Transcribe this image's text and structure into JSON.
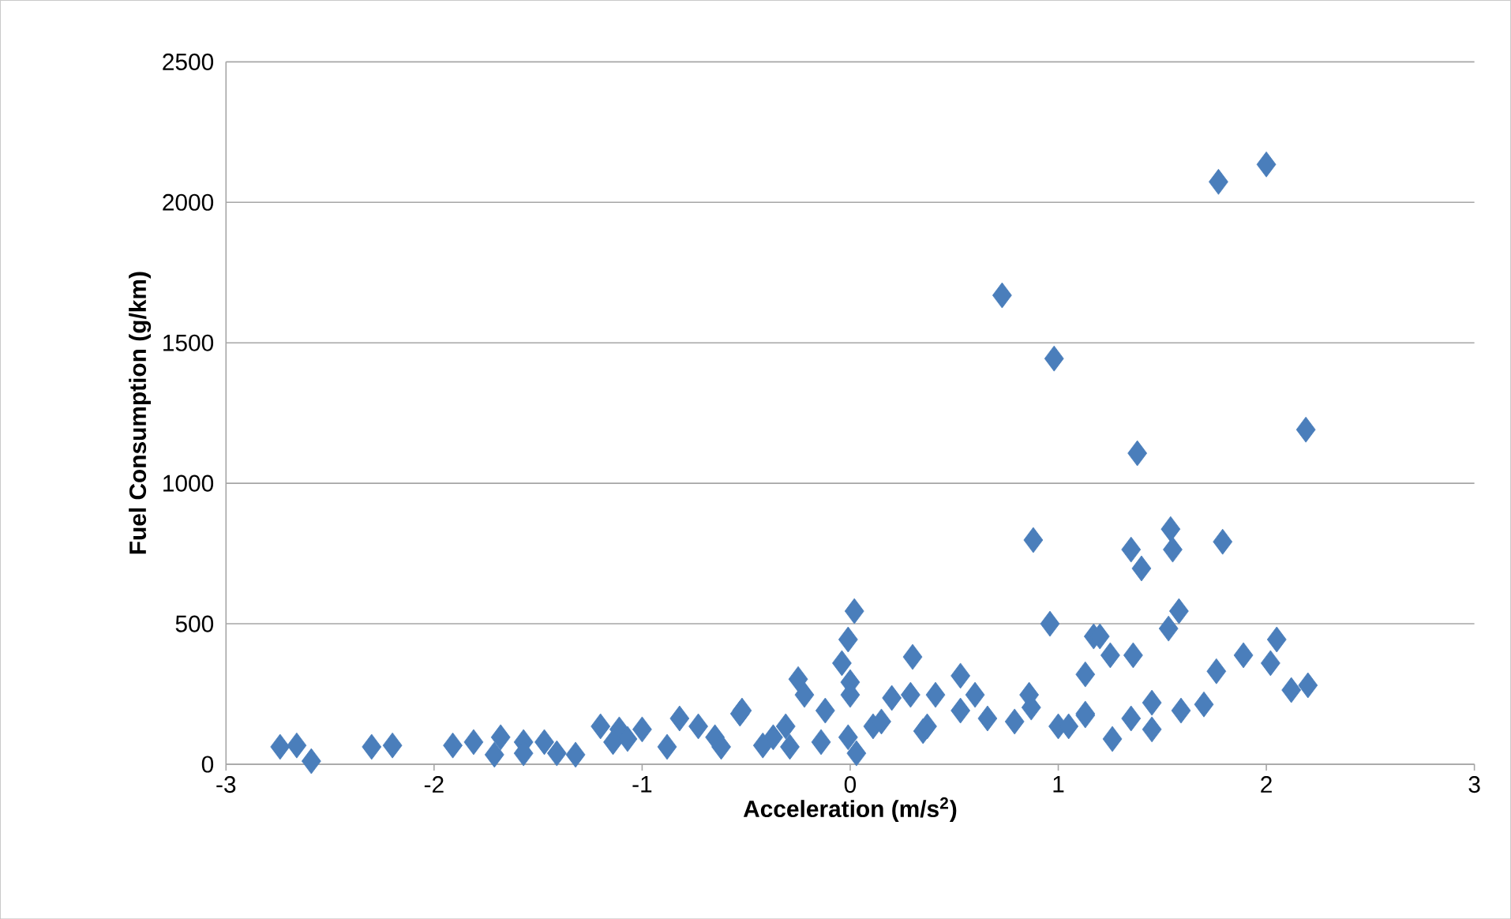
{
  "chart_data": {
    "type": "scatter",
    "xlabel": "Acceleration (m/s$^{2}$)",
    "ylabel": "Fuel Consumption (g/km)",
    "marker": "diamond",
    "grid": "y",
    "xlim": [
      -3,
      3
    ],
    "ylim": [
      0,
      2500
    ],
    "xticks": [
      -3,
      -2,
      -1,
      0,
      1,
      2,
      3
    ],
    "yticks": [
      0,
      500,
      1000,
      1500,
      2000,
      2500
    ],
    "series": [
      {
        "color": "#4a7ebb",
        "x": [
          -2.74,
          -2.66,
          -2.59,
          -2.3,
          -2.2,
          -1.91,
          -1.81,
          -1.68,
          -1.71,
          -1.57,
          -1.57,
          -1.47,
          -1.41,
          -1.32,
          -1.2,
          -1.11,
          -1.0,
          -1.07,
          -1.14,
          -0.88,
          -0.82,
          -0.73,
          -0.65,
          -0.53,
          -0.52,
          -0.37,
          -0.31,
          -0.62,
          -0.42,
          -0.29,
          -0.14,
          0.03,
          -0.01,
          0.11,
          0.35,
          0.02,
          0.96,
          -0.01,
          -0.04,
          -0.25,
          0.3,
          -0.22,
          0.0,
          0.0,
          0.53,
          0.6,
          0.2,
          0.29,
          0.41,
          0.86,
          1.17,
          -0.12,
          0.15,
          0.37,
          0.53,
          0.66,
          0.79,
          0.87,
          1.0,
          1.05,
          1.13,
          1.38,
          2.19,
          1.35,
          1.54,
          1.55,
          1.4,
          1.79,
          1.58,
          1.53,
          1.2,
          1.25,
          1.36,
          1.13,
          2.05,
          1.89,
          2.02,
          1.76,
          2.12,
          2.2,
          1.13,
          1.35,
          1.45,
          1.45,
          1.59,
          1.7,
          1.26,
          0.73,
          0.98,
          0.88,
          1.77,
          2.0
        ],
        "values": [
          62,
          67,
          11,
          62,
          67,
          67,
          79,
          96,
          34,
          79,
          39,
          79,
          39,
          34,
          135,
          124,
          124,
          90,
          79,
          62,
          163,
          135,
          96,
          180,
          191,
          96,
          135,
          62,
          67,
          62,
          79,
          39,
          96,
          135,
          118,
          545,
          500,
          444,
          360,
          303,
          382,
          247,
          292,
          247,
          315,
          247,
          236,
          247,
          247,
          247,
          455,
          191,
          152,
          135,
          191,
          163,
          152,
          202,
          135,
          135,
          180,
          1107,
          1191,
          764,
          837,
          764,
          697,
          792,
          545,
          483,
          455,
          388,
          388,
          320,
          444,
          388,
          360,
          331,
          264,
          281,
          174,
          163,
          219,
          124,
          191,
          213,
          90,
          1669,
          1444,
          798,
          2073,
          2135
        ]
      }
    ]
  }
}
